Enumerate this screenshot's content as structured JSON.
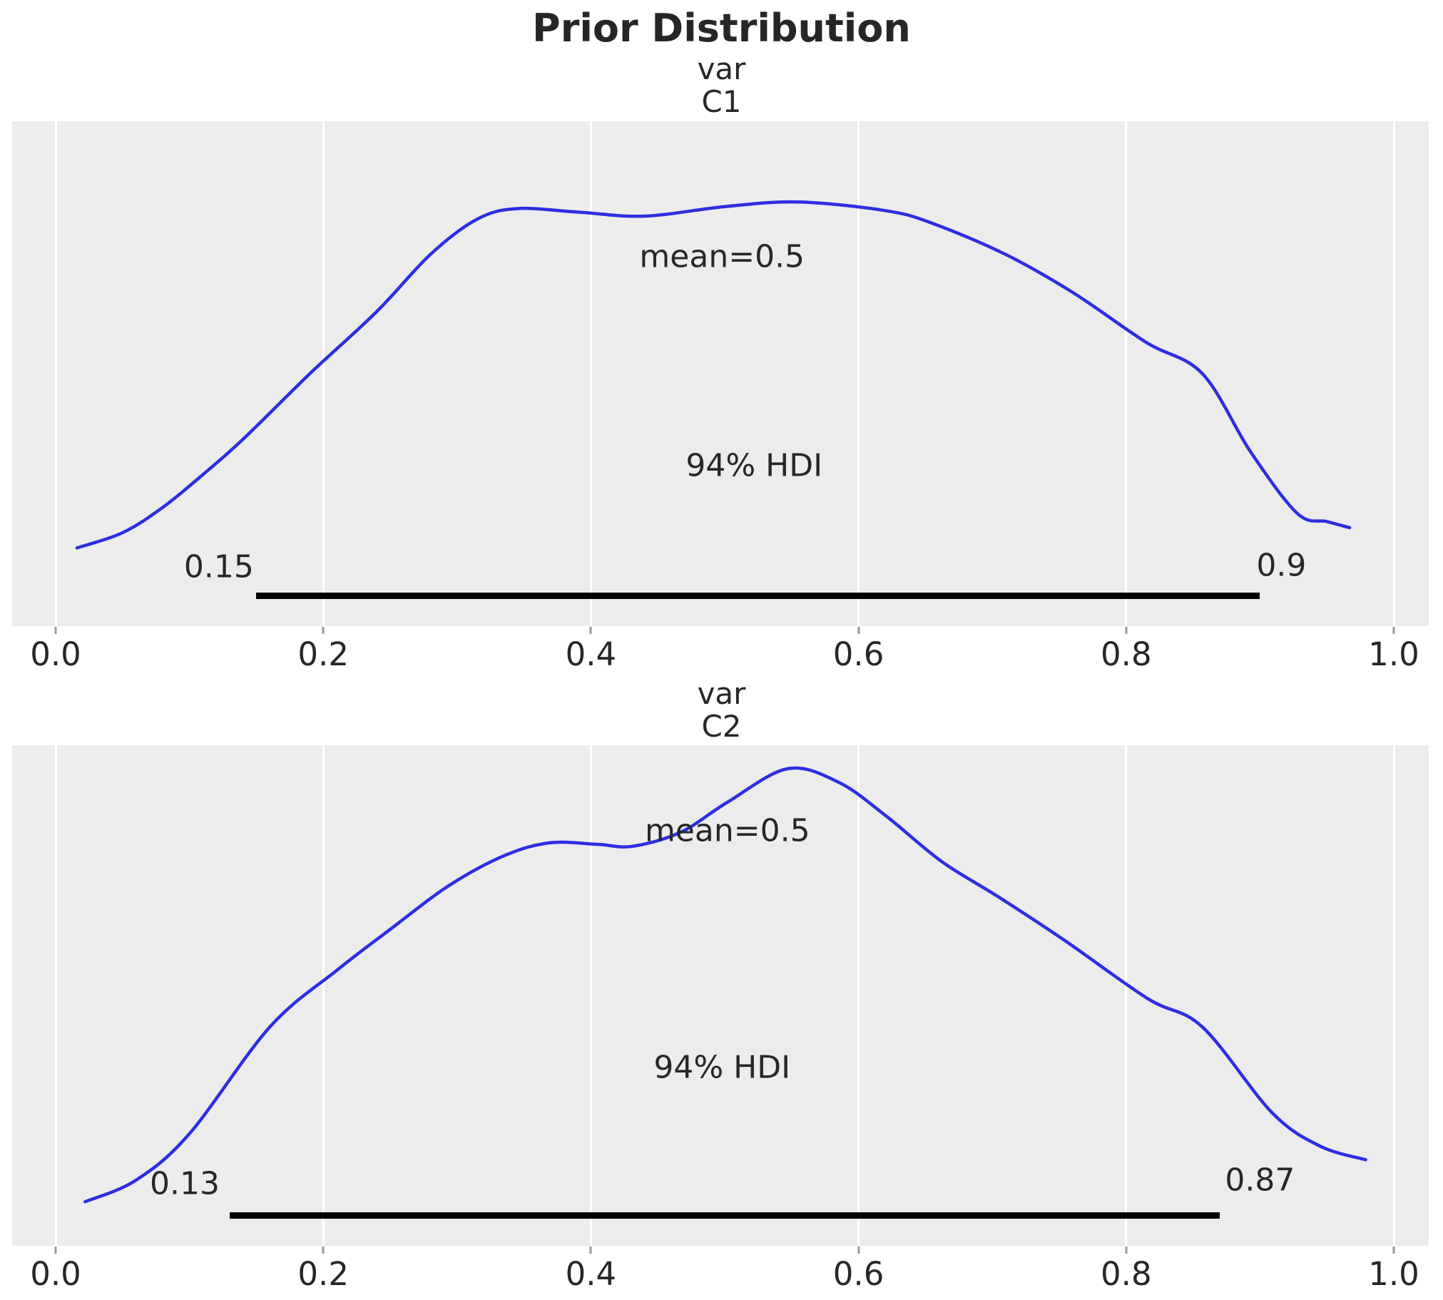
{
  "figure": {
    "title": "Prior Distribution"
  },
  "style": {
    "background": "#ffffff",
    "axes_background": "#ececec",
    "grid_color": "#ffffff",
    "line_color": "#2d2de1",
    "hdi_bar_color": "#000000",
    "text_color": "#262626",
    "tick_color": "#999999"
  },
  "chart_data": [
    {
      "type": "line",
      "kind": "kde-prior",
      "title": "var",
      "coord": "C1",
      "mean": 0.5,
      "mean_label": "mean=0.5",
      "hdi_prob": 0.94,
      "hdi_label": "94% HDI",
      "hdi_low": 0.15,
      "hdi_high": 0.9,
      "hdi_low_label": "0.15",
      "hdi_high_label": "0.9",
      "xlim": [
        -0.033,
        1.026
      ],
      "x_ticks": [
        0.0,
        0.2,
        0.4,
        0.6,
        0.8,
        1.0
      ],
      "x_tick_labels": [
        "0.0",
        "0.2",
        "0.4",
        "0.6",
        "0.8",
        "1.0"
      ],
      "grid": "vertical-only",
      "curve": [
        [
          0.016,
          0.155
        ],
        [
          0.05,
          0.185
        ],
        [
          0.08,
          0.235
        ],
        [
          0.11,
          0.3
        ],
        [
          0.14,
          0.37
        ],
        [
          0.19,
          0.5
        ],
        [
          0.24,
          0.623
        ],
        [
          0.28,
          0.736
        ],
        [
          0.315,
          0.806
        ],
        [
          0.345,
          0.827
        ],
        [
          0.39,
          0.82
        ],
        [
          0.44,
          0.812
        ],
        [
          0.5,
          0.831
        ],
        [
          0.555,
          0.84
        ],
        [
          0.62,
          0.823
        ],
        [
          0.655,
          0.798
        ],
        [
          0.71,
          0.736
        ],
        [
          0.76,
          0.661
        ],
        [
          0.815,
          0.562
        ],
        [
          0.857,
          0.5
        ],
        [
          0.893,
          0.345
        ],
        [
          0.928,
          0.223
        ],
        [
          0.95,
          0.207
        ],
        [
          0.967,
          0.195
        ]
      ],
      "labels_pos": {
        "mean": [
          0.498,
          0.732
        ],
        "hdi": [
          0.522,
          0.318
        ],
        "low": [
          0.122,
          0.117
        ],
        "high": [
          0.916,
          0.12
        ]
      }
    },
    {
      "type": "line",
      "kind": "kde-prior",
      "title": "var",
      "coord": "C2",
      "mean": 0.5,
      "mean_label": "mean=0.5",
      "hdi_prob": 0.94,
      "hdi_label": "94% HDI",
      "hdi_low": 0.13,
      "hdi_high": 0.87,
      "hdi_low_label": "0.13",
      "hdi_high_label": "0.87",
      "xlim": [
        -0.033,
        1.026
      ],
      "x_ticks": [
        0.0,
        0.2,
        0.4,
        0.6,
        0.8,
        1.0
      ],
      "x_tick_labels": [
        "0.0",
        "0.2",
        "0.4",
        "0.6",
        "0.8",
        "1.0"
      ],
      "grid": "vertical-only",
      "curve": [
        [
          0.022,
          0.088
        ],
        [
          0.06,
          0.131
        ],
        [
          0.1,
          0.224
        ],
        [
          0.16,
          0.437
        ],
        [
          0.21,
          0.55
        ],
        [
          0.25,
          0.632
        ],
        [
          0.293,
          0.718
        ],
        [
          0.335,
          0.779
        ],
        [
          0.369,
          0.805
        ],
        [
          0.405,
          0.802
        ],
        [
          0.431,
          0.798
        ],
        [
          0.467,
          0.826
        ],
        [
          0.502,
          0.886
        ],
        [
          0.547,
          0.953
        ],
        [
          0.585,
          0.926
        ],
        [
          0.62,
          0.86
        ],
        [
          0.662,
          0.768
        ],
        [
          0.704,
          0.698
        ],
        [
          0.753,
          0.612
        ],
        [
          0.816,
          0.494
        ],
        [
          0.857,
          0.437
        ],
        [
          0.909,
          0.266
        ],
        [
          0.945,
          0.199
        ],
        [
          0.979,
          0.172
        ]
      ],
      "labels_pos": {
        "mean": [
          0.502,
          0.829
        ],
        "hdi": [
          0.498,
          0.356
        ],
        "low": [
          0.0965,
          0.124
        ],
        "high": [
          0.9,
          0.131
        ]
      }
    }
  ]
}
